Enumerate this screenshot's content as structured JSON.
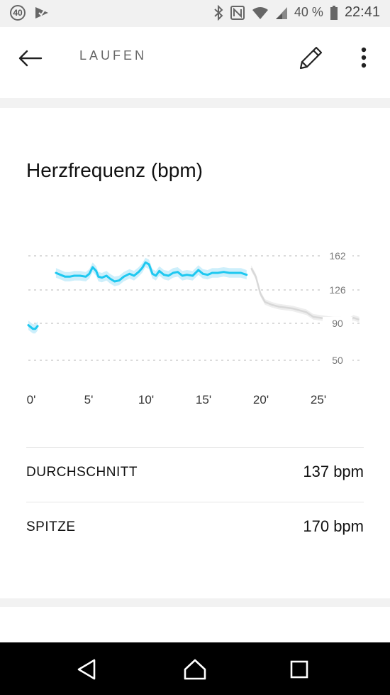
{
  "status_bar": {
    "badge": "40",
    "battery": "40 %",
    "time": "22:41",
    "icons": [
      "notification-badge-icon",
      "app-check-icon",
      "bluetooth-icon",
      "nfc-icon",
      "wifi-icon",
      "signal-icon",
      "battery-icon"
    ]
  },
  "header": {
    "title": "LAUFEN",
    "icons": [
      "back-arrow-icon",
      "pencil-icon",
      "more-vertical-icon"
    ]
  },
  "card": {
    "title": "Herzfrequenz (bpm)"
  },
  "chart_data": {
    "type": "line",
    "title": "Herzfrequenz (bpm)",
    "y_ticks": [
      "162",
      "126",
      "90",
      "50"
    ],
    "x_ticks": [
      "0'",
      "5'",
      "10'",
      "15'",
      "20'",
      "25'"
    ],
    "xlim": [
      0,
      29
    ],
    "ylim": [
      40,
      175
    ],
    "accent": "#1ec8f0",
    "band_color": "#cdeffb",
    "secondary_color": "#d8d8d8",
    "series": [
      {
        "values": [
          [
            0,
            88
          ],
          [
            0.2,
            86
          ],
          [
            0.4,
            84
          ],
          [
            0.6,
            84
          ],
          [
            0.8,
            87
          ]
        ]
      },
      {
        "values": [
          [
            2.4,
            144
          ],
          [
            2.8,
            142
          ],
          [
            3.2,
            140
          ],
          [
            3.6,
            140
          ],
          [
            4.0,
            141
          ],
          [
            4.5,
            141
          ],
          [
            5.0,
            140
          ],
          [
            5.3,
            143
          ],
          [
            5.6,
            150
          ],
          [
            5.9,
            146
          ],
          [
            6.1,
            140
          ],
          [
            6.4,
            139
          ],
          [
            6.8,
            141
          ],
          [
            7.1,
            138
          ],
          [
            7.5,
            135
          ],
          [
            7.9,
            136
          ],
          [
            8.3,
            140
          ],
          [
            8.8,
            143
          ],
          [
            9.2,
            141
          ],
          [
            9.6,
            145
          ],
          [
            9.9,
            149
          ],
          [
            10.2,
            155
          ],
          [
            10.5,
            153
          ],
          [
            10.8,
            143
          ],
          [
            11.1,
            141
          ],
          [
            11.4,
            146
          ],
          [
            11.8,
            142
          ],
          [
            12.2,
            141
          ],
          [
            12.6,
            144
          ],
          [
            13.0,
            145
          ],
          [
            13.4,
            141
          ],
          [
            13.8,
            142
          ],
          [
            14.3,
            141
          ],
          [
            14.8,
            147
          ],
          [
            15.2,
            143
          ],
          [
            15.6,
            142
          ],
          [
            16.0,
            144
          ],
          [
            16.5,
            144
          ],
          [
            17.0,
            145
          ],
          [
            17.5,
            144
          ],
          [
            18.0,
            144
          ],
          [
            18.5,
            144
          ],
          [
            19.0,
            142
          ]
        ]
      },
      {
        "values": [
          [
            19.4,
            149
          ],
          [
            19.8,
            140
          ],
          [
            20.2,
            122
          ],
          [
            20.6,
            113
          ],
          [
            21.2,
            110
          ],
          [
            21.8,
            108
          ],
          [
            22.4,
            107
          ],
          [
            23.0,
            106
          ],
          [
            23.6,
            104
          ],
          [
            24.2,
            102
          ],
          [
            24.8,
            97
          ],
          [
            25.4,
            96
          ],
          [
            26.0,
            95
          ],
          [
            26.6,
            94
          ],
          [
            27.2,
            94
          ],
          [
            27.8,
            92
          ],
          [
            28.3,
            96
          ],
          [
            28.8,
            94
          ]
        ]
      }
    ]
  },
  "stats": [
    {
      "label": "DURCHSCHNITT",
      "value": "137 bpm"
    },
    {
      "label": "SPITZE",
      "value": "170 bpm"
    }
  ],
  "nav": {
    "icons": [
      "nav-back-icon",
      "nav-home-icon",
      "nav-recents-icon"
    ]
  }
}
